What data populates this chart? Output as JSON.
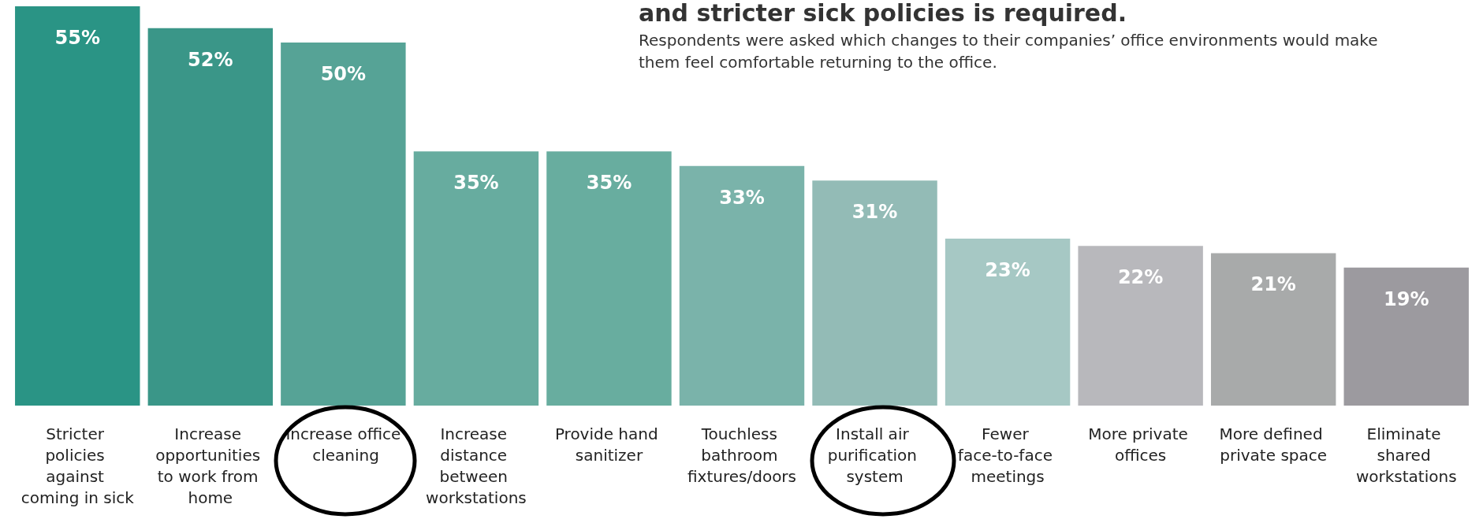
{
  "chart_data": {
    "type": "bar",
    "title": "and stricter sick policies is required.",
    "subtitle": "Respondents were asked which changes to their companies’ office environments would make them feel comfortable returning to the office.",
    "categories": [
      "Stricter policies against coming in sick",
      "Increase opportunities to work from home",
      "Increase office cleaning",
      "Increase distance between workstations",
      "Provide hand sanitizer",
      "Touchless bathroom fixtures/doors",
      "Install air purification system",
      "Fewer face-to-face meetings",
      "More private offices",
      "More defined private space",
      "Eliminate shared workstations"
    ],
    "values": [
      55,
      52,
      50,
      35,
      35,
      33,
      31,
      23,
      22,
      21,
      19
    ],
    "value_labels": [
      "55%",
      "52%",
      "50%",
      "35%",
      "35%",
      "33%",
      "31%",
      "23%",
      "22%",
      "21%",
      "19%"
    ],
    "colors": [
      "#2a9485",
      "#3a9688",
      "#56a396",
      "#67ac9f",
      "#68ad9f",
      "#7ab3aa",
      "#93bbb6",
      "#a6c8c4",
      "#b8b8bc",
      "#a8aaaa",
      "#9c9a9f"
    ]
  }
}
